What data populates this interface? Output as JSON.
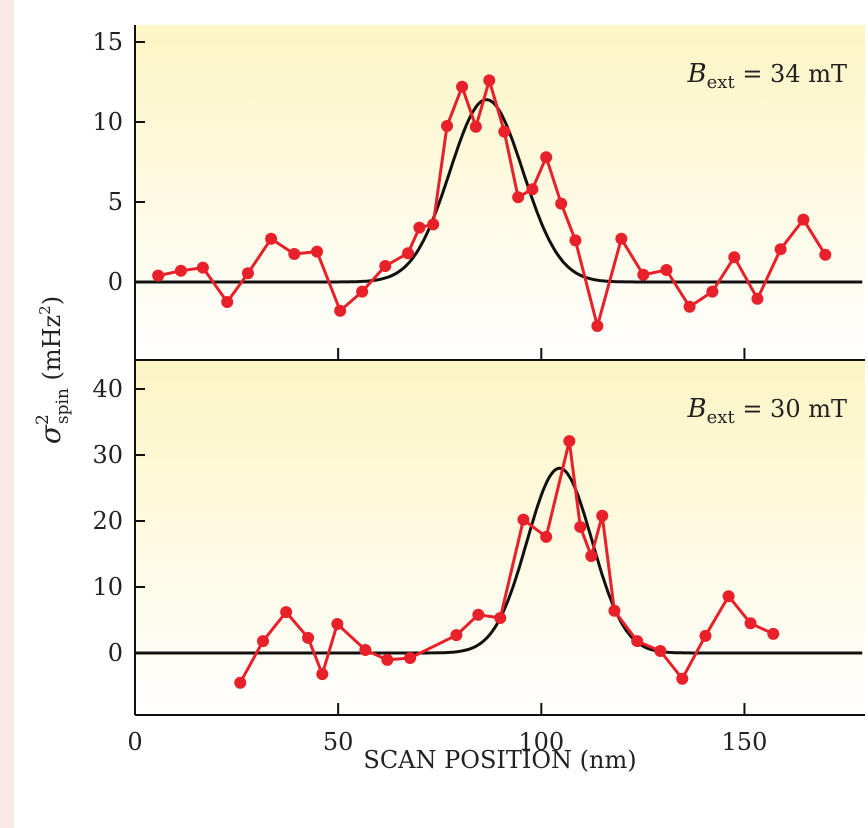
{
  "chart_data": [
    {
      "type": "line",
      "annotation": {
        "symbol": "B",
        "subscript": "ext",
        "text": " = 34 mT"
      },
      "ylabel": "σ²spin (mHz²)",
      "xlabel": "SCAN POSITION (nm)",
      "xlim": [
        0,
        180
      ],
      "ylim": [
        -5,
        16
      ],
      "yticks": [
        0,
        5,
        10,
        15
      ],
      "xticks": [
        0,
        50,
        100,
        150
      ],
      "grid": false,
      "colors": {
        "data": "#e8202a",
        "fit": "#111111",
        "background_top": "#fcf5c4"
      },
      "series": [
        {
          "type": "line+markers",
          "x": [
            5.7,
            11.3,
            16.7,
            22.7,
            27.8,
            33.5,
            39.2,
            44.8,
            50.5,
            55.9,
            61.6,
            67.2,
            70,
            73.4,
            76.8,
            80.5,
            83.9,
            87.2,
            90.9,
            94.3,
            97.8,
            101.2,
            104.9,
            108.4,
            113.8,
            119.7,
            125.1,
            130.8,
            136.5,
            142.1,
            147.5,
            153.2,
            158.9,
            164.5,
            169.9
          ],
          "y": [
            0.4,
            0.7,
            0.9,
            -1.25,
            0.55,
            2.7,
            1.75,
            1.9,
            -1.8,
            -0.6,
            1.0,
            1.8,
            3.4,
            3.6,
            9.75,
            12.2,
            9.7,
            12.6,
            9.4,
            5.3,
            5.8,
            7.8,
            4.9,
            2.6,
            -2.75,
            2.7,
            0.45,
            0.75,
            -1.55,
            -0.6,
            1.55,
            -1.05,
            2.05,
            3.9,
            1.7
          ]
        },
        {
          "type": "gaussian-fit",
          "amplitude": 11.4,
          "center": 86.5,
          "sigma": 9.0,
          "x_range": [
            0,
            180
          ]
        }
      ]
    },
    {
      "type": "line",
      "annotation": {
        "symbol": "B",
        "subscript": "ext",
        "text": " = 30 mT"
      },
      "xlim": [
        0,
        180
      ],
      "ylim": [
        -9,
        44
      ],
      "yticks": [
        0,
        10,
        20,
        30,
        40
      ],
      "xticks": [
        0,
        50,
        100,
        150
      ],
      "xticklabels": [
        "0",
        "50",
        "100",
        "150"
      ],
      "grid": false,
      "series": [
        {
          "type": "line+markers",
          "x": [
            25.9,
            31.5,
            37.2,
            42.6,
            46.1,
            49.8,
            56.7,
            62.1,
            67.7,
            79.1,
            84.5,
            89.9,
            95.6,
            101.2,
            106.9,
            109.6,
            112.3,
            115,
            118,
            123.6,
            129.3,
            134.7,
            140.4,
            146.1,
            151.5,
            157.1
          ],
          "y": [
            -4.5,
            1.8,
            6.2,
            2.3,
            -3.2,
            4.4,
            0.45,
            -1.05,
            -0.75,
            2.7,
            5.8,
            5.3,
            20.2,
            17.6,
            32.1,
            19.1,
            14.7,
            20.8,
            6.4,
            1.8,
            0.3,
            -3.9,
            2.6,
            8.6,
            4.5,
            2.9
          ]
        },
        {
          "type": "gaussian-fit",
          "amplitude": 28.0,
          "center": 104.5,
          "sigma": 8.0,
          "x_range": [
            0,
            180
          ]
        }
      ]
    }
  ],
  "labels": {
    "ylabel_sigma": "σ",
    "ylabel_sup": "2",
    "ylabel_sub": "spin",
    "ylabel_unit": " (mHz",
    "ylabel_unit_sup": "2",
    "ylabel_close": ")",
    "xlabel": "SCAN POSITION (nm)"
  }
}
